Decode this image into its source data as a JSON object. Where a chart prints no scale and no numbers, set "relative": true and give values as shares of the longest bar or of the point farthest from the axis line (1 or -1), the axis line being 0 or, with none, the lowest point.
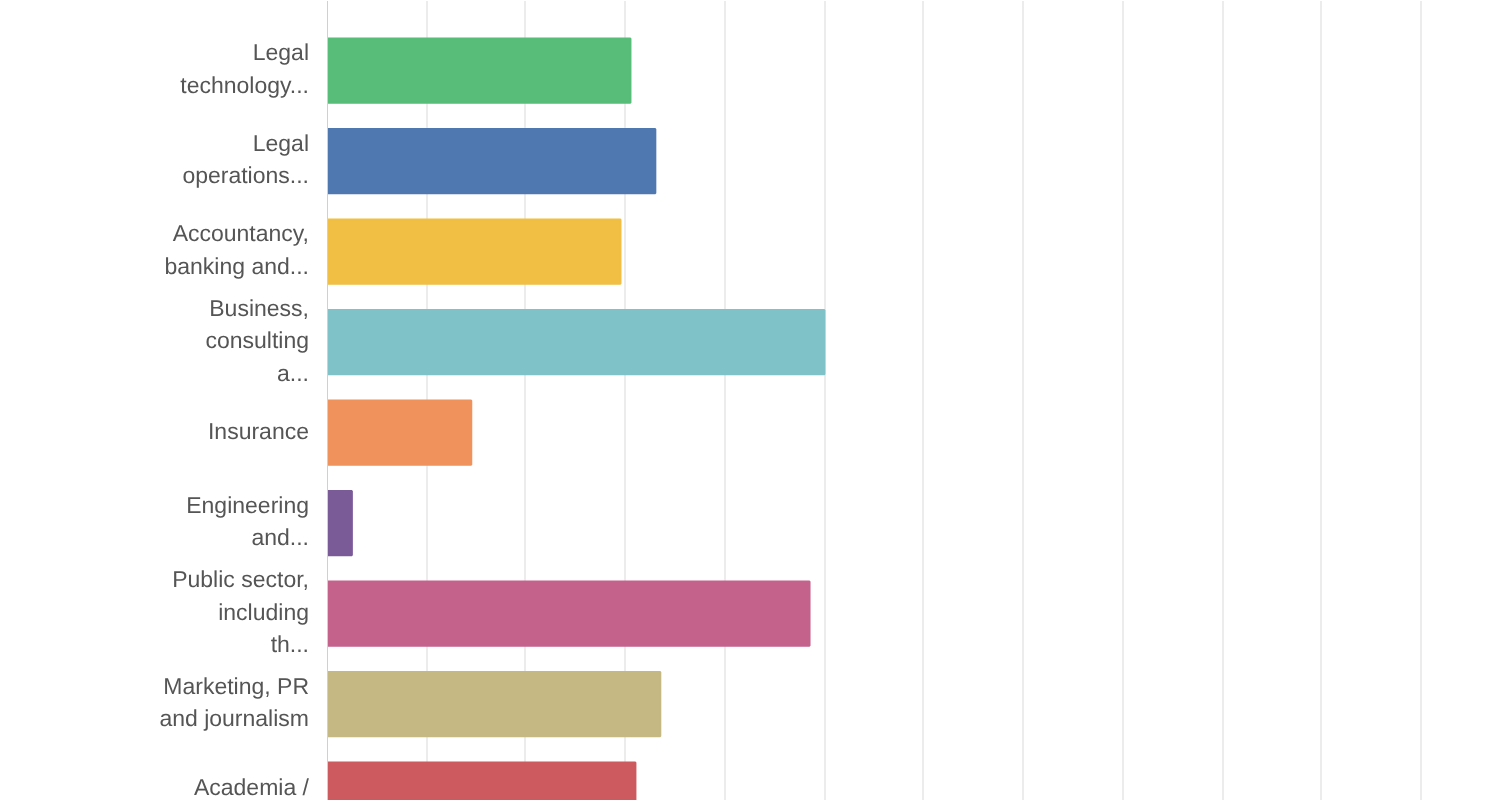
{
  "chart_data": {
    "type": "bar",
    "orientation": "horizontal",
    "relative": true,
    "grid": "x",
    "categories": [
      "Legal technology...",
      "Legal operations...",
      "Accountancy, banking and...",
      "Business, consulting a...",
      "Insurance",
      "Engineering and...",
      "Public sector, including th...",
      "Marketing, PR and journalism",
      "Academia /"
    ],
    "values": [
      0.61,
      0.66,
      0.59,
      1,
      0.29,
      0.05,
      0.97,
      0.67,
      0.62
    ],
    "colors": [
      "#57bd78",
      "#5078b0",
      "#f0bf43",
      "#7fc3c8",
      "#f0925c",
      "#7b5a98",
      "#c4628c",
      "#c6b882",
      "#cc5a5e"
    ]
  }
}
